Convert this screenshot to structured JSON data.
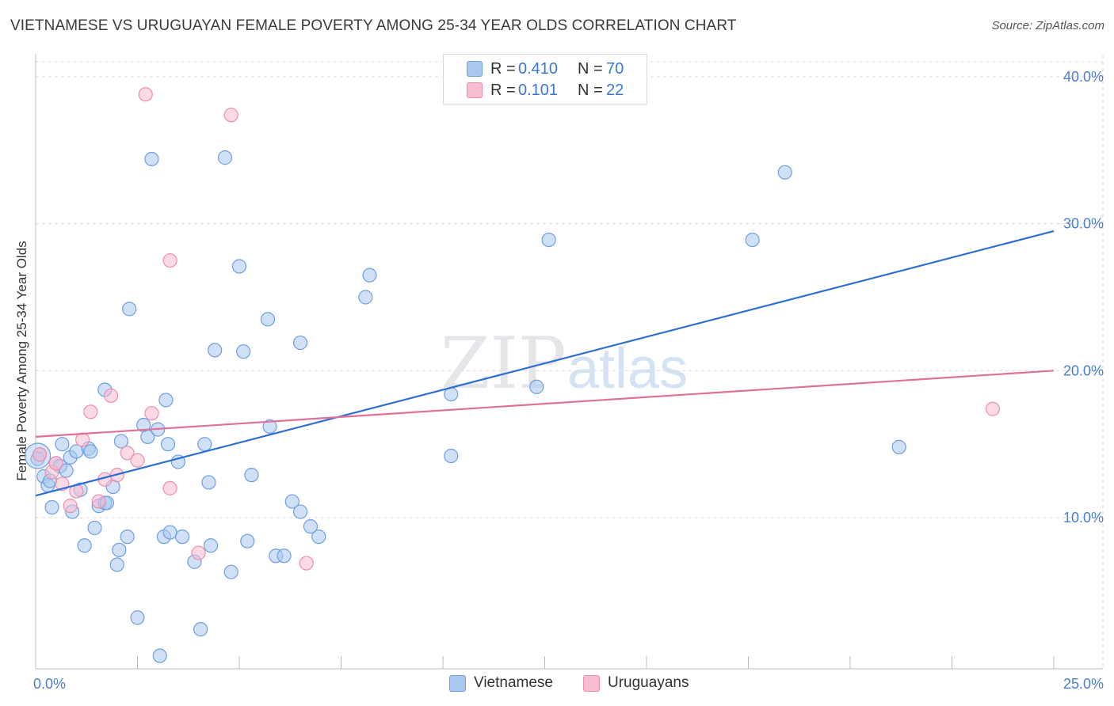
{
  "header": {
    "title": "VIETNAMESE VS URUGUAYAN FEMALE POVERTY AMONG 25-34 YEAR OLDS CORRELATION CHART",
    "source": "Source: ZipAtlas.com"
  },
  "watermark": {
    "zip": "ZIP",
    "atlas": "atlas"
  },
  "colors": {
    "vietnamese_fill": "#a9c8f0",
    "vietnamese_stroke": "#6d9fe0",
    "vietnamese_line": "#2f6fcf",
    "uruguayan_fill": "#f7bcd0",
    "uruguayan_stroke": "#ec8fae",
    "uruguayan_line": "#e0709a",
    "tick_label": "#4a7fcf"
  },
  "legend": {
    "rows": [
      {
        "r_label": "R =",
        "r_value": "0.410",
        "n_label": "N =",
        "n_value": "70"
      },
      {
        "r_label": "R =",
        "r_value": "0.101",
        "n_label": "N =",
        "n_value": "22"
      }
    ],
    "bottom": [
      "Vietnamese",
      "Uruguayans"
    ]
  },
  "chart_data": {
    "type": "scatter",
    "title": "VIETNAMESE VS URUGUAYAN FEMALE POVERTY AMONG 25-34 YEAR OLDS CORRELATION CHART",
    "xlabel": "",
    "ylabel": "Female Poverty Among 25-34 Year Olds",
    "xlim": [
      0,
      25
    ],
    "ylim": [
      0,
      40
    ],
    "x_ticks": [
      "0.0%",
      "25.0%"
    ],
    "y_ticks": [
      "10.0%",
      "20.0%",
      "30.0%",
      "40.0%"
    ],
    "y_tick_values": [
      10,
      20,
      30,
      40
    ],
    "grid": true,
    "legend_position": "top-center",
    "series": [
      {
        "name": "Vietnamese",
        "r": 0.41,
        "n": 70,
        "trend": {
          "x0": 0,
          "y0": 11.5,
          "x1": 25,
          "y1": 29.5
        },
        "points": [
          [
            0.1,
            14.3
          ],
          [
            0.2,
            12.8
          ],
          [
            0.3,
            12.2
          ],
          [
            0.35,
            12.5
          ],
          [
            0.4,
            10.7
          ],
          [
            0.5,
            13.7
          ],
          [
            0.6,
            13.5
          ],
          [
            0.65,
            15.0
          ],
          [
            0.75,
            13.2
          ],
          [
            0.85,
            14.1
          ],
          [
            0.9,
            10.4
          ],
          [
            1.0,
            14.5
          ],
          [
            1.1,
            11.9
          ],
          [
            1.2,
            8.1
          ],
          [
            1.3,
            14.7
          ],
          [
            1.35,
            14.5
          ],
          [
            1.45,
            9.3
          ],
          [
            1.55,
            10.8
          ],
          [
            1.7,
            11.0
          ],
          [
            1.75,
            11.0
          ],
          [
            1.7,
            18.7
          ],
          [
            1.9,
            12.1
          ],
          [
            2.0,
            6.8
          ],
          [
            2.05,
            7.8
          ],
          [
            2.1,
            15.2
          ],
          [
            2.25,
            8.7
          ],
          [
            2.3,
            24.2
          ],
          [
            2.5,
            3.2
          ],
          [
            2.65,
            16.3
          ],
          [
            2.75,
            15.5
          ],
          [
            2.85,
            34.4
          ],
          [
            3.0,
            16.0
          ],
          [
            3.05,
            0.6
          ],
          [
            3.15,
            8.7
          ],
          [
            3.2,
            18.0
          ],
          [
            3.25,
            15.0
          ],
          [
            3.3,
            9.0
          ],
          [
            3.5,
            13.8
          ],
          [
            3.6,
            8.7
          ],
          [
            3.9,
            7.0
          ],
          [
            4.05,
            2.4
          ],
          [
            4.15,
            15.0
          ],
          [
            4.25,
            12.4
          ],
          [
            4.3,
            8.1
          ],
          [
            4.4,
            21.4
          ],
          [
            4.65,
            34.5
          ],
          [
            4.8,
            6.3
          ],
          [
            5.0,
            27.1
          ],
          [
            5.1,
            21.3
          ],
          [
            5.2,
            8.4
          ],
          [
            5.3,
            12.9
          ],
          [
            5.7,
            23.5
          ],
          [
            5.75,
            16.2
          ],
          [
            5.9,
            7.4
          ],
          [
            6.1,
            7.4
          ],
          [
            6.3,
            11.1
          ],
          [
            6.5,
            21.9
          ],
          [
            6.5,
            10.4
          ],
          [
            6.75,
            9.4
          ],
          [
            6.95,
            8.7
          ],
          [
            8.1,
            25.0
          ],
          [
            8.2,
            26.5
          ],
          [
            10.2,
            18.4
          ],
          [
            10.2,
            14.2
          ],
          [
            12.3,
            18.9
          ],
          [
            12.6,
            28.9
          ],
          [
            17.6,
            28.9
          ],
          [
            18.4,
            33.5
          ],
          [
            21.2,
            14.8
          ],
          [
            0.05,
            14.0
          ]
        ]
      },
      {
        "name": "Uruguayans",
        "r": 0.101,
        "n": 22,
        "trend": {
          "x0": 0,
          "y0": 15.5,
          "x1": 25,
          "y1": 20.0
        },
        "points": [
          [
            0.1,
            14.3
          ],
          [
            0.4,
            13.1
          ],
          [
            0.5,
            13.7
          ],
          [
            0.65,
            12.3
          ],
          [
            0.85,
            10.8
          ],
          [
            1.0,
            11.8
          ],
          [
            1.15,
            15.3
          ],
          [
            1.35,
            17.2
          ],
          [
            1.55,
            11.1
          ],
          [
            1.7,
            12.6
          ],
          [
            1.85,
            18.3
          ],
          [
            2.0,
            12.9
          ],
          [
            2.25,
            14.4
          ],
          [
            2.5,
            13.9
          ],
          [
            2.7,
            38.8
          ],
          [
            2.85,
            17.1
          ],
          [
            3.3,
            27.5
          ],
          [
            3.3,
            12.0
          ],
          [
            4.0,
            7.6
          ],
          [
            4.8,
            37.4
          ],
          [
            6.65,
            6.9
          ],
          [
            23.5,
            17.4
          ]
        ]
      }
    ]
  }
}
